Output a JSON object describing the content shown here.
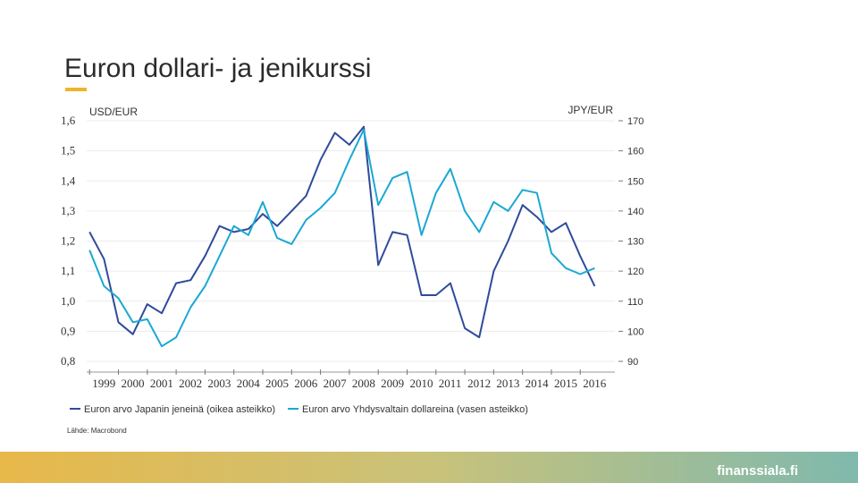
{
  "title": "Euron dollari- ja jenikurssi",
  "footer": "finanssiala.fi",
  "chart_data": {
    "type": "line",
    "ylabel": "USD/EUR",
    "y2label": "JPY/EUR",
    "source": "Lähde: Macrobond",
    "grid": true,
    "legend": "bottom",
    "x": [
      1999.0,
      1999.5,
      2000.0,
      2000.5,
      2001.0,
      2001.5,
      2002.0,
      2002.5,
      2003.0,
      2003.5,
      2004.0,
      2004.5,
      2005.0,
      2005.5,
      2006.0,
      2006.5,
      2007.0,
      2007.5,
      2008.0,
      2008.5,
      2009.0,
      2009.5,
      2010.0,
      2010.5,
      2011.0,
      2011.5,
      2012.0,
      2012.5,
      2013.0,
      2013.5,
      2014.0,
      2014.5,
      2015.0,
      2015.5,
      2016.0,
      2016.5
    ],
    "xlim": [
      1998.9,
      2017.2
    ],
    "xticks": [
      1999,
      2000,
      2001,
      2002,
      2003,
      2004,
      2005,
      2006,
      2007,
      2008,
      2009,
      2010,
      2011,
      2012,
      2013,
      2014,
      2015,
      2016
    ],
    "ylim": [
      0.8,
      1.6
    ],
    "yticks": [
      {
        "value": 0.8,
        "label": "0,8"
      },
      {
        "value": 0.9,
        "label": "0,9"
      },
      {
        "value": 1.0,
        "label": "1,0"
      },
      {
        "value": 1.1,
        "label": "1,1"
      },
      {
        "value": 1.2,
        "label": "1,2"
      },
      {
        "value": 1.3,
        "label": "1,3"
      },
      {
        "value": 1.4,
        "label": "1,4"
      },
      {
        "value": 1.5,
        "label": "1,5"
      },
      {
        "value": 1.6,
        "label": "1,6"
      }
    ],
    "y2lim": [
      90,
      170
    ],
    "y2ticks": [
      90,
      100,
      110,
      120,
      130,
      140,
      150,
      160,
      170
    ],
    "series": [
      {
        "name": "Euron arvo Japanin jeneinä (oikea asteikko)",
        "color": "#2f4b9b",
        "axis": "y2",
        "values": [
          133,
          124,
          103,
          99,
          109,
          106,
          116,
          117,
          125,
          135,
          133,
          134,
          139,
          135,
          140,
          145,
          157,
          166,
          162,
          168,
          122,
          133,
          132,
          112,
          112,
          116,
          101,
          98,
          120,
          130,
          142,
          138,
          133,
          136,
          125,
          115
        ]
      },
      {
        "name": "Euron arvo Yhdysvaltain dollareina (vasen asteikko)",
        "color": "#1ba8d3",
        "values": [
          1.17,
          1.05,
          1.01,
          0.93,
          0.94,
          0.85,
          0.88,
          0.98,
          1.05,
          1.15,
          1.25,
          1.22,
          1.33,
          1.21,
          1.19,
          1.27,
          1.31,
          1.36,
          1.47,
          1.57,
          1.32,
          1.41,
          1.43,
          1.22,
          1.36,
          1.44,
          1.3,
          1.23,
          1.33,
          1.3,
          1.37,
          1.36,
          1.16,
          1.11,
          1.09,
          1.11
        ]
      }
    ]
  }
}
